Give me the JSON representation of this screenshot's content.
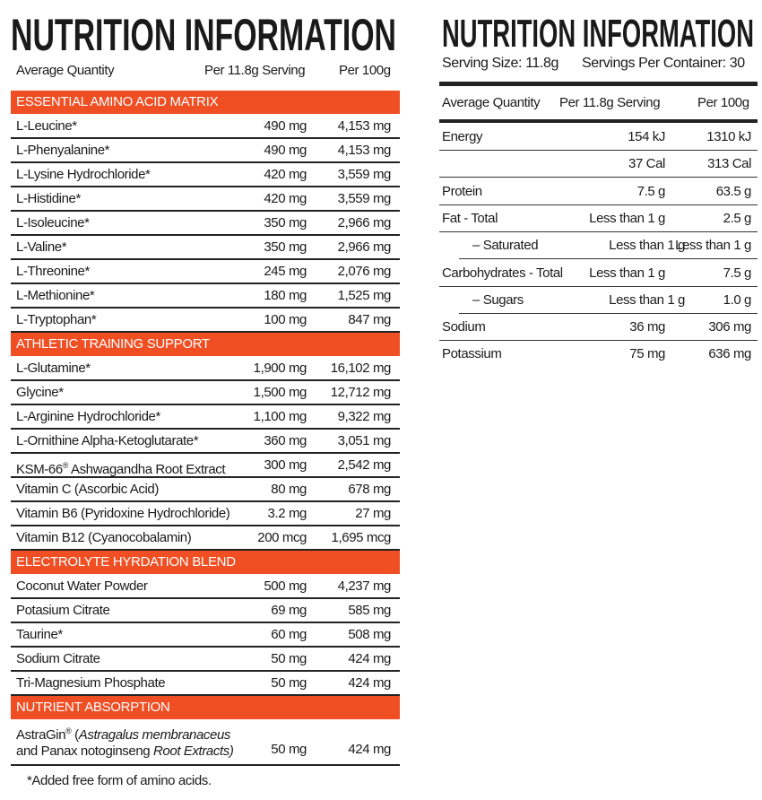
{
  "left": {
    "title": "NUTRITION INFORMATION",
    "headers": [
      "Average Quantity",
      "Per 11.8g Serving",
      "Per 100g"
    ],
    "sections": [
      {
        "title": "ESSENTIAL AMINO ACID MATRIX",
        "rows": [
          [
            "L-Leucine*",
            "490 mg",
            "4,153 mg"
          ],
          [
            "L-Phenyalanine*",
            "490 mg",
            "4,153 mg"
          ],
          [
            "L-Lysine Hydrochloride*",
            "420 mg",
            "3,559 mg"
          ],
          [
            "L-Histidine*",
            "420 mg",
            "3,559 mg"
          ],
          [
            "L-Isoleucine*",
            "350 mg",
            "2,966 mg"
          ],
          [
            "L-Valine*",
            "350 mg",
            "2,966 mg"
          ],
          [
            "L-Threonine*",
            "245 mg",
            "2,076 mg"
          ],
          [
            "L-Methionine*",
            "180 mg",
            "1,525 mg"
          ],
          [
            "L-Tryptophan*",
            "100 mg",
            "847 mg"
          ]
        ]
      },
      {
        "title": "ATHLETIC TRAINING SUPPORT",
        "rows": [
          [
            "L-Glutamine*",
            "1,900 mg",
            "16,102 mg"
          ],
          [
            "Glycine*",
            "1,500 mg",
            "12,712 mg"
          ],
          [
            "L-Arginine Hydrochloride*",
            "1,100 mg",
            "9,322 mg"
          ],
          [
            "L-Ornithine Alpha-Ketoglutarate*",
            "360 mg",
            "3,051 mg"
          ],
          [
            "KSM-66® Ashwagandha Root Extract",
            "300 mg",
            "2,542 mg"
          ],
          [
            "Vitamin C (Ascorbic Acid)",
            "80 mg",
            "678 mg"
          ],
          [
            "Vitamin B6 (Pyridoxine Hydrochloride)",
            "3.2 mg",
            "27 mg"
          ],
          [
            "Vitamin B12 (Cyanocobalamin)",
            "200 mcg",
            "1,695 mcg"
          ]
        ]
      },
      {
        "title": "ELECTROLYTE HYRDATION BLEND",
        "rows": [
          [
            "Coconut Water Powder",
            "500 mg",
            "4,237 mg"
          ],
          [
            "Potasium Citrate",
            "69 mg",
            "585 mg"
          ],
          [
            "Taurine*",
            "60 mg",
            "508 mg"
          ],
          [
            "Sodium Citrate",
            "50 mg",
            "424 mg"
          ],
          [
            "Tri-Magnesium Phosphate",
            "50 mg",
            "424 mg"
          ]
        ]
      },
      {
        "title": "NUTRIENT ABSORPTION",
        "rows": [
          [
            "AstraGin® (|Astragalus membranaceus|\nand Panax notoginseng| Root Extracts)",
            "50 mg",
            "424 mg"
          ]
        ]
      }
    ],
    "footnote": "*Added free form of amino acids."
  },
  "right": {
    "title": "NUTRITION INFORMATION",
    "serving_size": "Serving Size: 11.8g",
    "servings_per_container": "Servings Per Container: 30",
    "headers": [
      "Average Quantity",
      "Per 11.8g Serving",
      "Per 100g"
    ],
    "rows": [
      [
        "Energy",
        "154 kJ",
        "1310 kJ"
      ],
      [
        "",
        "37 Cal",
        "313 Cal"
      ],
      [
        "Protein",
        "7.5 g",
        "63.5 g"
      ],
      [
        "Fat - Total",
        "Less than 1 g",
        "2.5 g"
      ],
      [
        "– Saturated",
        "Less than 1 g",
        "Less than 1 g"
      ],
      [
        "Carbohydrates - Total",
        "Less than 1 g",
        "7.5 g"
      ],
      [
        "– Sugars",
        "Less than 1 g",
        "1.0 g"
      ],
      [
        "Sodium",
        "36 mg",
        "306 mg"
      ],
      [
        "Potassium",
        "75 mg",
        "636 mg"
      ]
    ]
  },
  "colors": {
    "accent": "#f04e23",
    "text": "#1a1a1a"
  }
}
